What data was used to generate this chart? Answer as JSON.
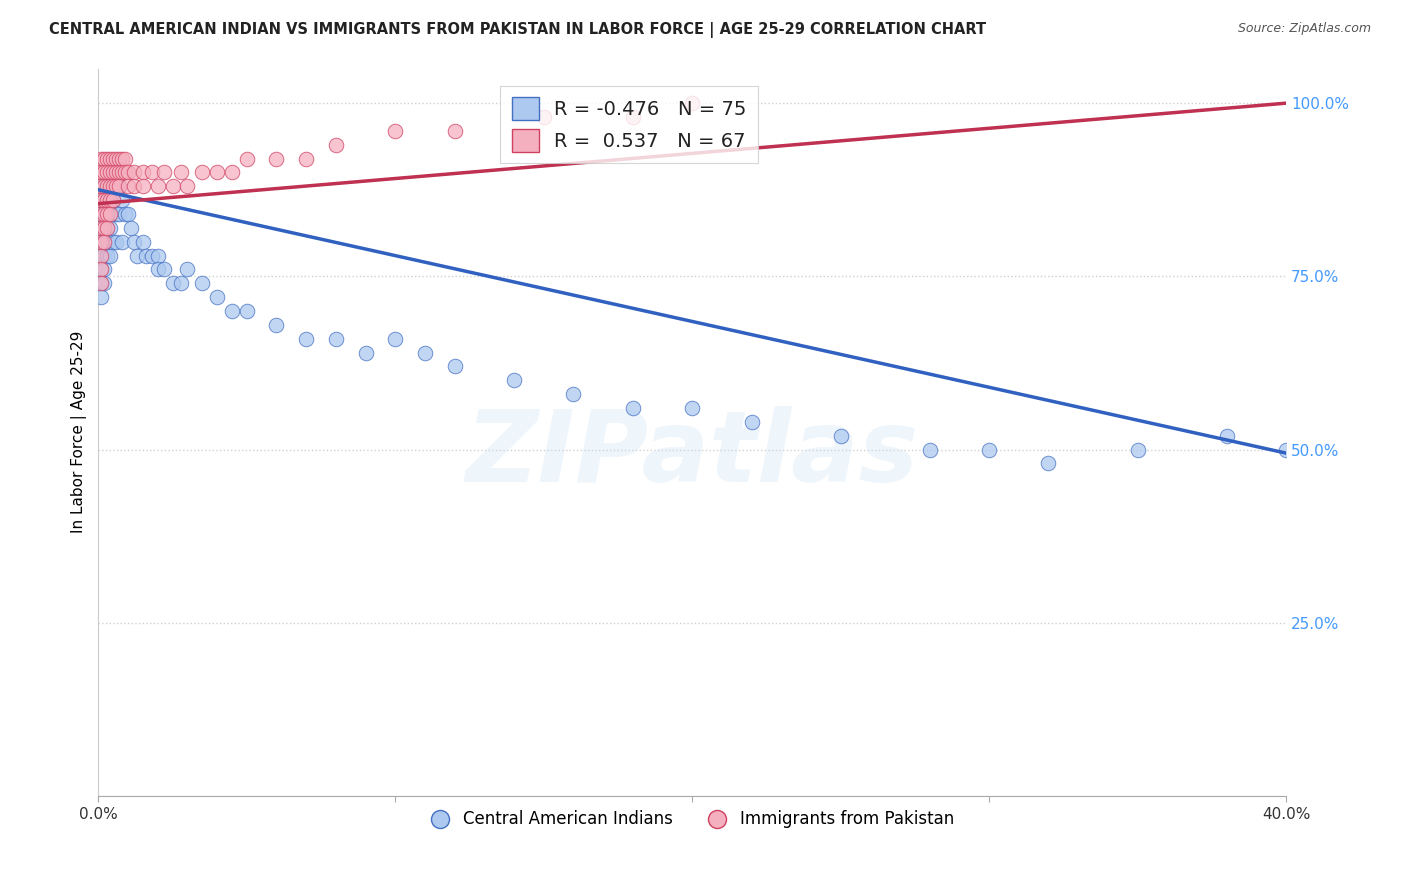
{
  "title": "CENTRAL AMERICAN INDIAN VS IMMIGRANTS FROM PAKISTAN IN LABOR FORCE | AGE 25-29 CORRELATION CHART",
  "source": "Source: ZipAtlas.com",
  "ylabel": "In Labor Force | Age 25-29",
  "blue_R": -0.476,
  "blue_N": 75,
  "pink_R": 0.537,
  "pink_N": 67,
  "blue_label": "Central American Indians",
  "pink_label": "Immigrants from Pakistan",
  "watermark": "ZIPatlas",
  "blue_color": "#adc9f0",
  "pink_color": "#f5b0c0",
  "blue_edge_color": "#4470c4",
  "pink_edge_color": "#d04060",
  "blue_line_color": "#3060c0",
  "pink_line_color": "#c03050",
  "blue_x": [
    0.001,
    0.001,
    0.001,
    0.001,
    0.001,
    0.001,
    0.001,
    0.001,
    0.001,
    0.001,
    0.002,
    0.002,
    0.002,
    0.002,
    0.002,
    0.002,
    0.002,
    0.002,
    0.003,
    0.003,
    0.003,
    0.003,
    0.003,
    0.003,
    0.004,
    0.004,
    0.004,
    0.004,
    0.005,
    0.005,
    0.005,
    0.005,
    0.006,
    0.006,
    0.006,
    0.007,
    0.007,
    0.008,
    0.008,
    0.009,
    0.01,
    0.011,
    0.012,
    0.013,
    0.015,
    0.016,
    0.018,
    0.02,
    0.02,
    0.022,
    0.025,
    0.028,
    0.03,
    0.035,
    0.04,
    0.045,
    0.05,
    0.06,
    0.07,
    0.08,
    0.09,
    0.1,
    0.11,
    0.12,
    0.14,
    0.16,
    0.18,
    0.2,
    0.22,
    0.25,
    0.28,
    0.3,
    0.32,
    0.35,
    0.38,
    0.4
  ],
  "blue_y": [
    0.88,
    0.86,
    0.85,
    0.84,
    0.82,
    0.8,
    0.78,
    0.76,
    0.74,
    0.72,
    0.88,
    0.86,
    0.84,
    0.82,
    0.8,
    0.78,
    0.76,
    0.74,
    0.88,
    0.86,
    0.84,
    0.82,
    0.8,
    0.78,
    0.88,
    0.86,
    0.82,
    0.78,
    0.88,
    0.86,
    0.84,
    0.8,
    0.88,
    0.84,
    0.8,
    0.88,
    0.84,
    0.86,
    0.8,
    0.84,
    0.84,
    0.82,
    0.8,
    0.78,
    0.8,
    0.78,
    0.78,
    0.78,
    0.76,
    0.76,
    0.74,
    0.74,
    0.76,
    0.74,
    0.72,
    0.7,
    0.7,
    0.68,
    0.66,
    0.66,
    0.64,
    0.66,
    0.64,
    0.62,
    0.6,
    0.58,
    0.56,
    0.56,
    0.54,
    0.52,
    0.5,
    0.5,
    0.48,
    0.5,
    0.52,
    0.5
  ],
  "pink_x": [
    0.001,
    0.001,
    0.001,
    0.001,
    0.001,
    0.001,
    0.001,
    0.001,
    0.001,
    0.001,
    0.002,
    0.002,
    0.002,
    0.002,
    0.002,
    0.002,
    0.002,
    0.003,
    0.003,
    0.003,
    0.003,
    0.003,
    0.003,
    0.004,
    0.004,
    0.004,
    0.004,
    0.004,
    0.005,
    0.005,
    0.005,
    0.005,
    0.006,
    0.006,
    0.006,
    0.007,
    0.007,
    0.007,
    0.008,
    0.008,
    0.009,
    0.009,
    0.01,
    0.01,
    0.012,
    0.012,
    0.015,
    0.015,
    0.018,
    0.02,
    0.022,
    0.025,
    0.028,
    0.03,
    0.035,
    0.04,
    0.045,
    0.05,
    0.06,
    0.07,
    0.08,
    0.1,
    0.12,
    0.15,
    0.18,
    0.2
  ],
  "pink_y": [
    0.92,
    0.9,
    0.88,
    0.86,
    0.84,
    0.82,
    0.8,
    0.78,
    0.76,
    0.74,
    0.92,
    0.9,
    0.88,
    0.86,
    0.84,
    0.82,
    0.8,
    0.92,
    0.9,
    0.88,
    0.86,
    0.84,
    0.82,
    0.92,
    0.9,
    0.88,
    0.86,
    0.84,
    0.92,
    0.9,
    0.88,
    0.86,
    0.92,
    0.9,
    0.88,
    0.92,
    0.9,
    0.88,
    0.92,
    0.9,
    0.92,
    0.9,
    0.9,
    0.88,
    0.9,
    0.88,
    0.9,
    0.88,
    0.9,
    0.88,
    0.9,
    0.88,
    0.9,
    0.88,
    0.9,
    0.9,
    0.9,
    0.92,
    0.92,
    0.92,
    0.94,
    0.96,
    0.96,
    0.98,
    0.98,
    1.0
  ],
  "blue_line_x": [
    0.0,
    0.4
  ],
  "blue_line_y": [
    0.875,
    0.495
  ],
  "pink_line_x": [
    0.0,
    0.4
  ],
  "pink_line_y": [
    0.855,
    1.0
  ],
  "xlim": [
    0.0,
    0.4
  ],
  "ylim": [
    0.0,
    1.05
  ],
  "ytick_vals": [
    0.0,
    0.25,
    0.5,
    0.75,
    1.0
  ],
  "ytick_labels_right": [
    "",
    "25.0%",
    "50.0%",
    "75.0%",
    "100.0%"
  ],
  "xtick_vals": [
    0.0,
    0.1,
    0.2,
    0.3,
    0.4
  ],
  "xtick_labels": [
    "0.0%",
    "",
    "",
    "",
    "40.0%"
  ],
  "grid_color": "#d0d0d0",
  "right_tick_color": "#4499ff"
}
